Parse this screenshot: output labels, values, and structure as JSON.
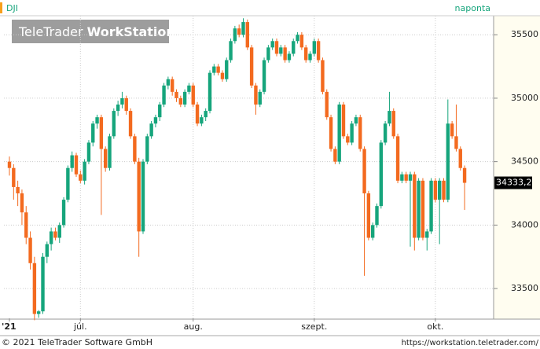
{
  "chart_data": {
    "type": "candlestick",
    "symbol": "DJI",
    "period": "naponta",
    "watermark_light": "TeleTrader",
    "watermark_bold": "WorkStation",
    "footer_left": "© 2021 TeleTrader Software GmbH",
    "footer_right": "https://workstation.teletrader.com/",
    "up_color": "#16a57c",
    "down_color": "#f36a1f",
    "ylim": [
      33265,
      35650
    ],
    "yticks": [
      33500,
      34000,
      34500,
      35000,
      35500
    ],
    "grid": true,
    "last": {
      "value": 34333.2,
      "label": "34333,2"
    },
    "categories": [
      "'21",
      null,
      null,
      null,
      null,
      null,
      null,
      null,
      null,
      null,
      null,
      null,
      null,
      null,
      null,
      null,
      null,
      "júl.",
      null,
      null,
      null,
      null,
      null,
      null,
      null,
      null,
      null,
      null,
      null,
      null,
      null,
      null,
      null,
      null,
      null,
      null,
      null,
      null,
      null,
      null,
      null,
      null,
      null,
      null,
      "aug.",
      null,
      null,
      null,
      null,
      null,
      null,
      null,
      null,
      null,
      null,
      null,
      null,
      null,
      null,
      null,
      null,
      null,
      null,
      null,
      null,
      null,
      null,
      null,
      null,
      null,
      null,
      null,
      null,
      "szept.",
      null,
      null,
      null,
      null,
      null,
      null,
      null,
      null,
      null,
      null,
      null,
      null,
      null,
      null,
      null,
      null,
      null,
      null,
      null,
      null,
      null,
      null,
      null,
      null,
      null,
      null,
      null,
      null,
      "okt.",
      null,
      null,
      null,
      null,
      null,
      null,
      null,
      null,
      null,
      null
    ],
    "candles": [
      [
        34500,
        34540,
        34390,
        34450
      ],
      [
        34450,
        34480,
        34200,
        34300
      ],
      [
        34300,
        34350,
        34150,
        34250
      ],
      [
        34250,
        34280,
        34000,
        34100
      ],
      [
        34100,
        34150,
        33850,
        33900
      ],
      [
        33900,
        33950,
        33650,
        33700
      ],
      [
        33700,
        33750,
        33250,
        33300
      ],
      [
        33300,
        33330,
        33270,
        33320
      ],
      [
        33320,
        33780,
        33300,
        33750
      ],
      [
        33750,
        33870,
        33700,
        33850
      ],
      [
        33850,
        33980,
        33800,
        33950
      ],
      [
        33950,
        33980,
        33880,
        33900
      ],
      [
        33900,
        34020,
        33860,
        34000
      ],
      [
        34000,
        34220,
        33980,
        34200
      ],
      [
        34200,
        34470,
        34180,
        34450
      ],
      [
        34450,
        34580,
        34420,
        34550
      ],
      [
        34550,
        34570,
        34380,
        34400
      ],
      [
        34400,
        34430,
        34330,
        34350
      ],
      [
        34350,
        34520,
        34320,
        34500
      ],
      [
        34500,
        34670,
        34480,
        34650
      ],
      [
        34650,
        34820,
        34620,
        34800
      ],
      [
        34800,
        34870,
        34760,
        34850
      ],
      [
        34850,
        34870,
        34080,
        34600
      ],
      [
        34600,
        34620,
        34420,
        34450
      ],
      [
        34450,
        34720,
        34430,
        34700
      ],
      [
        34700,
        34920,
        34680,
        34900
      ],
      [
        34900,
        34980,
        34860,
        34950
      ],
      [
        34950,
        35050,
        34920,
        35000
      ],
      [
        35000,
        35020,
        34870,
        34900
      ],
      [
        34900,
        34920,
        34680,
        34700
      ],
      [
        34700,
        34720,
        34480,
        34500
      ],
      [
        34500,
        34530,
        33750,
        33950
      ],
      [
        33950,
        34520,
        33930,
        34500
      ],
      [
        34500,
        34720,
        34480,
        34700
      ],
      [
        34700,
        34820,
        34680,
        34800
      ],
      [
        34800,
        34870,
        34770,
        34850
      ],
      [
        34850,
        34970,
        34820,
        34950
      ],
      [
        34950,
        35120,
        34930,
        35100
      ],
      [
        35100,
        35170,
        35070,
        35150
      ],
      [
        35150,
        35170,
        35020,
        35050
      ],
      [
        35050,
        35070,
        34970,
        35000
      ],
      [
        35000,
        35020,
        34930,
        34950
      ],
      [
        34950,
        35070,
        34930,
        35050
      ],
      [
        35050,
        35120,
        35030,
        35100
      ],
      [
        35100,
        35120,
        34930,
        34950
      ],
      [
        34950,
        34970,
        34780,
        34800
      ],
      [
        34800,
        34870,
        34780,
        34850
      ],
      [
        34850,
        34920,
        34820,
        34900
      ],
      [
        34900,
        35220,
        34880,
        35200
      ],
      [
        35200,
        35270,
        35180,
        35250
      ],
      [
        35250,
        35270,
        35180,
        35200
      ],
      [
        35200,
        35220,
        35130,
        35150
      ],
      [
        35150,
        35320,
        35130,
        35300
      ],
      [
        35300,
        35470,
        35280,
        35450
      ],
      [
        35450,
        35570,
        35430,
        35550
      ],
      [
        35550,
        35580,
        35480,
        35500
      ],
      [
        35500,
        35630,
        35480,
        35600
      ],
      [
        35600,
        35620,
        35380,
        35400
      ],
      [
        35400,
        35420,
        35080,
        35100
      ],
      [
        35100,
        35120,
        34870,
        34950
      ],
      [
        34950,
        35070,
        34930,
        35050
      ],
      [
        35050,
        35320,
        35030,
        35300
      ],
      [
        35300,
        35420,
        35280,
        35400
      ],
      [
        35400,
        35470,
        35380,
        35450
      ],
      [
        35450,
        35470,
        35330,
        35350
      ],
      [
        35350,
        35420,
        35330,
        35400
      ],
      [
        35400,
        35420,
        35280,
        35300
      ],
      [
        35300,
        35370,
        35280,
        35350
      ],
      [
        35350,
        35470,
        35330,
        35450
      ],
      [
        35450,
        35520,
        35430,
        35500
      ],
      [
        35500,
        35520,
        35380,
        35400
      ],
      [
        35400,
        35420,
        35280,
        35300
      ],
      [
        35300,
        35370,
        35280,
        35350
      ],
      [
        35350,
        35470,
        35330,
        35450
      ],
      [
        35450,
        35470,
        35280,
        35300
      ],
      [
        35300,
        35320,
        35030,
        35050
      ],
      [
        35050,
        35070,
        34830,
        34850
      ],
      [
        34850,
        34870,
        34580,
        34600
      ],
      [
        34600,
        34620,
        34480,
        34500
      ],
      [
        34500,
        34970,
        34480,
        34950
      ],
      [
        34950,
        34970,
        34680,
        34700
      ],
      [
        34700,
        34720,
        34630,
        34650
      ],
      [
        34650,
        34820,
        34630,
        34800
      ],
      [
        34800,
        34870,
        34780,
        34850
      ],
      [
        34850,
        34870,
        34580,
        34600
      ],
      [
        34600,
        34620,
        33600,
        34250
      ],
      [
        34250,
        34270,
        33880,
        33900
      ],
      [
        33900,
        34020,
        33880,
        34000
      ],
      [
        34000,
        34170,
        33980,
        34150
      ],
      [
        34150,
        34670,
        34130,
        34650
      ],
      [
        34650,
        34820,
        34630,
        34800
      ],
      [
        34800,
        35050,
        34780,
        34900
      ],
      [
        34900,
        34920,
        34680,
        34700
      ],
      [
        34700,
        34720,
        34330,
        34350
      ],
      [
        34350,
        34420,
        34330,
        34400
      ],
      [
        34400,
        34420,
        34330,
        34350
      ],
      [
        34350,
        34420,
        33830,
        34400
      ],
      [
        34400,
        34420,
        33800,
        33900
      ],
      [
        33900,
        34370,
        33880,
        34350
      ],
      [
        34350,
        34370,
        33880,
        33900
      ],
      [
        33900,
        33970,
        33800,
        33950
      ],
      [
        33950,
        34370,
        33930,
        34350
      ],
      [
        34350,
        34370,
        34180,
        34200
      ],
      [
        34200,
        34370,
        33850,
        34350
      ],
      [
        34350,
        34370,
        34180,
        34200
      ],
      [
        34200,
        34990,
        34180,
        34800
      ],
      [
        34800,
        34820,
        34680,
        34700
      ],
      [
        34700,
        34950,
        34580,
        34600
      ],
      [
        34600,
        34620,
        34430,
        34450
      ],
      [
        34450,
        34470,
        34120,
        34333.2
      ]
    ]
  }
}
